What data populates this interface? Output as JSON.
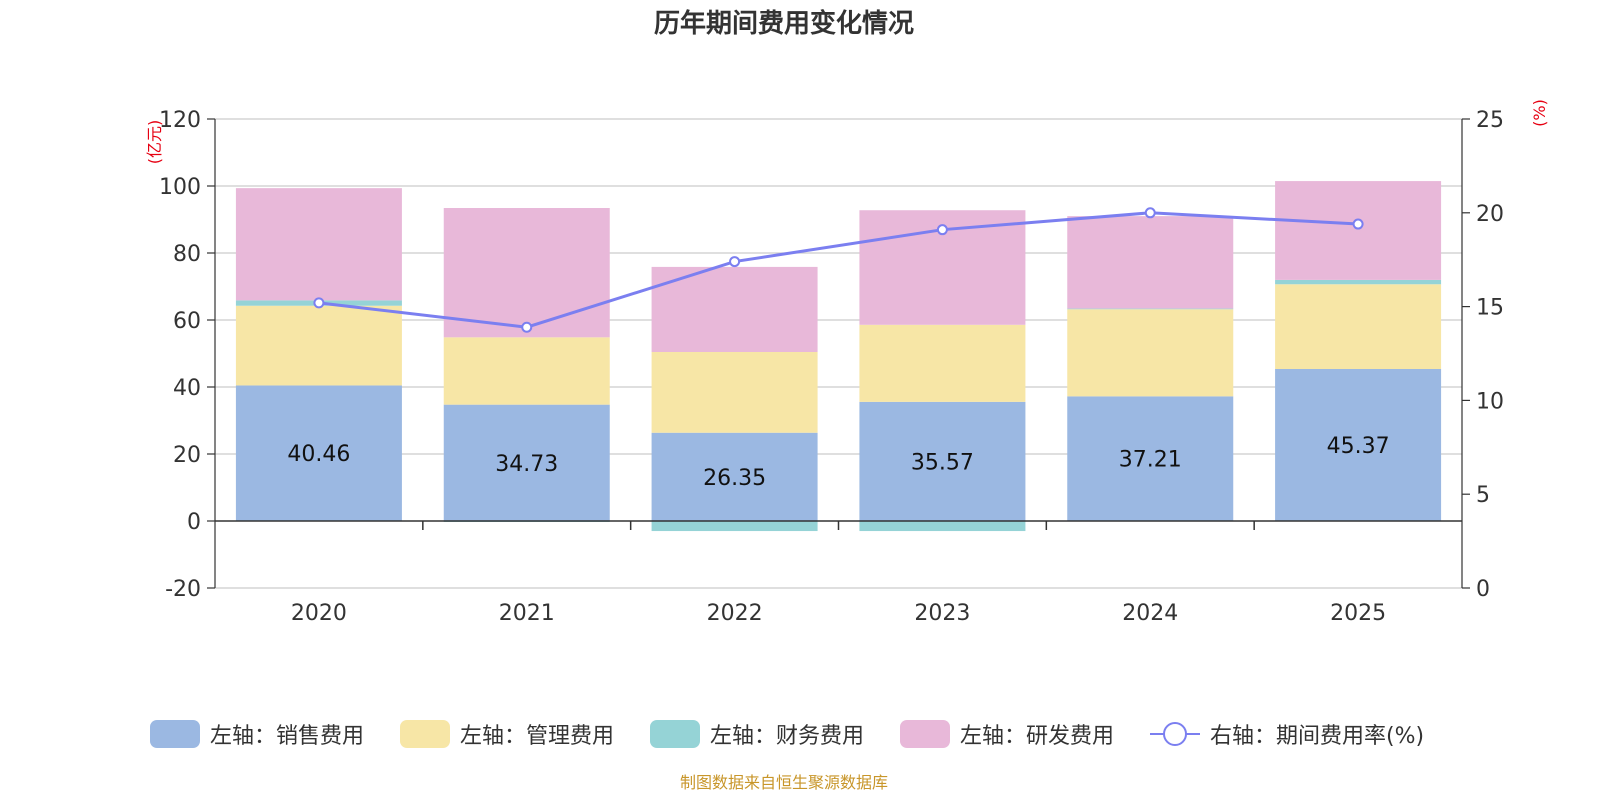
{
  "chart_data": {
    "type": "bar",
    "stacked": true,
    "title": "历年期间费用变化情况",
    "categories": [
      "2020",
      "2021",
      "2022",
      "2023",
      "2024",
      "2025"
    ],
    "series": [
      {
        "name": "左轴：销售费用",
        "axis": "left",
        "color": "#9bb8e2",
        "values": [
          40.46,
          34.73,
          26.35,
          35.57,
          37.21,
          45.37
        ],
        "labels": [
          "40.46",
          "34.73",
          "26.35",
          "35.57",
          "37.21",
          "45.37"
        ]
      },
      {
        "name": "左轴：管理费用",
        "axis": "left",
        "color": "#f7e6a6",
        "values": [
          23.8,
          20.1,
          24.1,
          23.0,
          26.0,
          25.3
        ]
      },
      {
        "name": "左轴：财务费用",
        "axis": "left",
        "color": "#95d3d6",
        "values": [
          1.6,
          -0.3,
          -3.0,
          -3.0,
          0.2,
          1.3
        ]
      },
      {
        "name": "左轴：研发费用",
        "axis": "left",
        "color": "#e8b8d9",
        "values": [
          33.5,
          38.6,
          25.4,
          34.2,
          27.6,
          29.5
        ]
      }
    ],
    "line": {
      "name": "右轴：期间费用率(%)",
      "axis": "right",
      "color": "#7b7ff0",
      "values": [
        15.2,
        13.9,
        17.4,
        19.1,
        20.0,
        19.4
      ]
    },
    "left_axis": {
      "unit": "(亿元)",
      "ylim": [
        -20,
        120
      ],
      "ticks": [
        -20,
        0,
        20,
        40,
        60,
        80,
        100,
        120
      ]
    },
    "right_axis": {
      "unit": "(%)",
      "ylim": [
        0,
        25
      ],
      "ticks": [
        0,
        5,
        10,
        15,
        20,
        25
      ]
    },
    "legend_position": "bottom",
    "source": "制图数据来自恒生聚源数据库"
  }
}
